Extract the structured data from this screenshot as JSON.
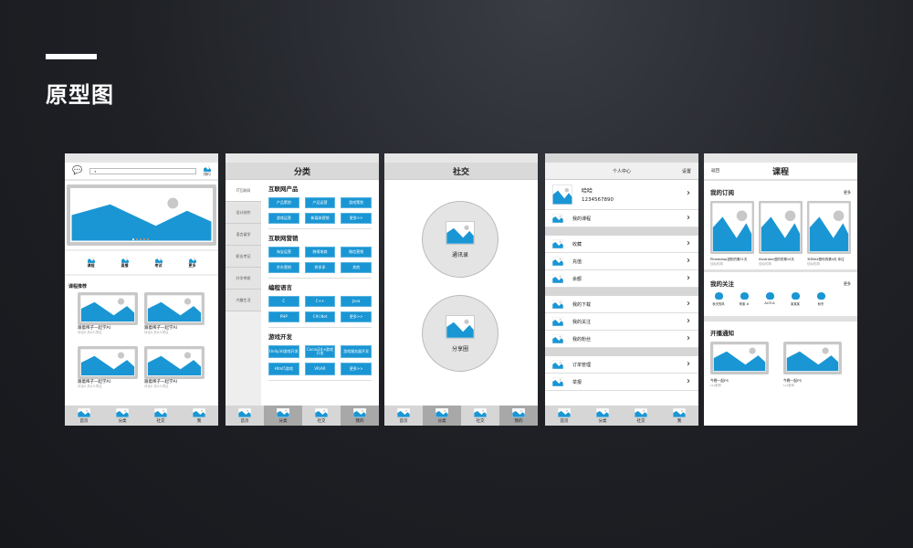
{
  "slide": {
    "title": "原型图"
  },
  "colors": {
    "accent": "#1a96d4",
    "frame": "#c8c8c8",
    "tabbar": "#d6d6d6"
  },
  "home": {
    "search_placeholder": "",
    "rank_label": "排行",
    "quick": [
      "课程",
      "直播",
      "考试",
      "更多"
    ],
    "section": "课程推荐",
    "cards": [
      {
        "title": "跟着稀子一起学AI",
        "sub": "评论0 共0人学过"
      },
      {
        "title": "跟着稀子一起学AI",
        "sub": "评论0 共0人学过"
      },
      {
        "title": "跟着稀子一起学AI",
        "sub": "评论0 共0人学过"
      },
      {
        "title": "跟着稀子一起学AI",
        "sub": "评论0 共0人学过"
      }
    ],
    "tabs": [
      "首页",
      "分类",
      "社交",
      "我"
    ]
  },
  "category": {
    "title": "分类",
    "sidebar": [
      "IT互联网",
      "设计创作",
      "语言留学",
      "职业考证",
      "升学考研",
      "兴趣生活"
    ],
    "sections": [
      {
        "title": "互联网产品",
        "items": [
          "产品策划",
          "产品运营",
          "游戏策划",
          "游戏运营",
          "新媒体营销",
          "更多>>"
        ]
      },
      {
        "title": "互联网营销",
        "items": [
          "淘宝运营",
          "跨境电商",
          "微信营销",
          "京东营销",
          "拼多多",
          "其他"
        ]
      },
      {
        "title": "编程语言",
        "items": [
          "C",
          "C++",
          "Java",
          "PHP",
          "C#/.Net",
          "更多>>"
        ]
      },
      {
        "title": "游戏开发",
        "items": [
          "Unity3d游戏开发",
          "Cocos2d-x游戏开发",
          "游戏服务器开发",
          "Html5游戏",
          "VR/AR",
          "更多>>"
        ]
      }
    ],
    "tabs": [
      "首页",
      "分类",
      "社交",
      "我的"
    ]
  },
  "social": {
    "title": "社交",
    "entries": [
      "通讯录",
      "分享圈"
    ],
    "tabs": [
      "首页",
      "分类",
      "社交",
      "我的"
    ]
  },
  "profile": {
    "title": "个人中心",
    "settings": "设置",
    "name": "哈哈",
    "id": "1234567890",
    "groups": [
      [
        "我的课程"
      ],
      [
        "收藏",
        "充值",
        "余额"
      ],
      [
        "我的下载",
        "我的关注",
        "我的粉丝"
      ],
      [
        "订单管理",
        "举报"
      ]
    ],
    "tabs": [
      "首页",
      "分类",
      "社交",
      "我"
    ]
  },
  "course": {
    "back": "返回",
    "title": "课程",
    "more": "更多",
    "subs_title": "我的订阅",
    "subs": [
      {
        "title": "Photoshop进阶的第21天",
        "sub": "佳似的风"
      },
      {
        "title": "Illustrator进阶的第10天",
        "sub": "佳似的风"
      },
      {
        "title": "3DMAX是你的第4天 你往",
        "sub": "佳似的风"
      }
    ],
    "follow_title": "我的关注",
    "follows": [
      "秋天的风",
      "阿紫 #",
      "ALITLA",
      "某某某",
      "秋冬"
    ],
    "live_title": "开播通知",
    "live": [
      {
        "title": "今晚一起PS",
        "sub": "LLI老师"
      },
      {
        "title": "今晚一起PS",
        "sub": "LLI老师"
      }
    ]
  }
}
